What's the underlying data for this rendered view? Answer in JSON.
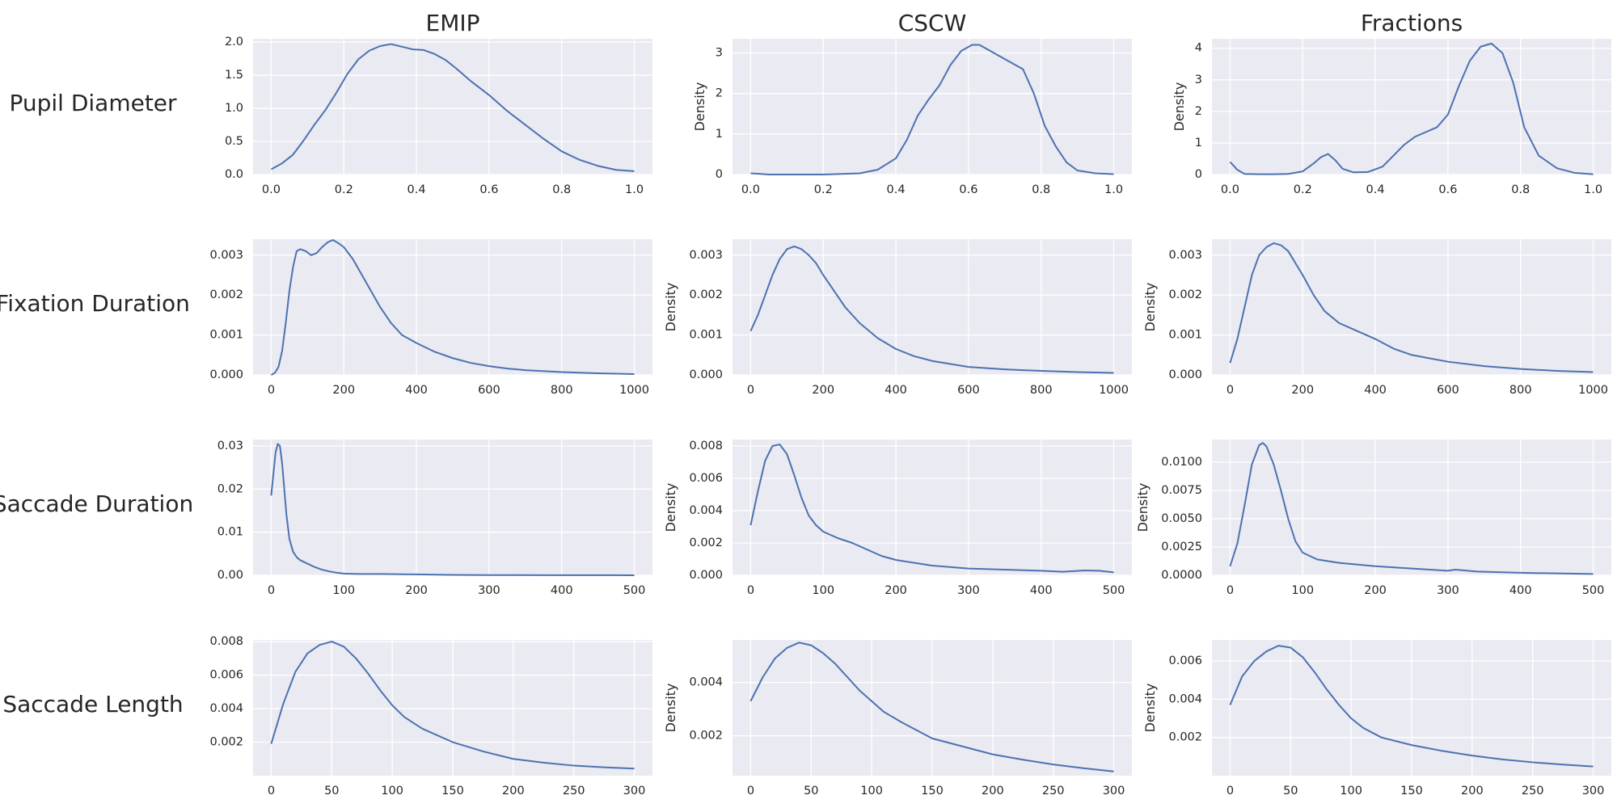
{
  "chart_data": {
    "type": "line",
    "subtype": "kde-density-grid",
    "columns": [
      "EMIP",
      "CSCW",
      "Fractions"
    ],
    "rows": [
      "Pupil Diameter",
      "Fixation Duration",
      "Saccade Duration",
      "Saccade Length"
    ],
    "colors": {
      "line": "#4c72b0",
      "background": "#eaeaf2",
      "grid": "#ffffff"
    },
    "panels": [
      {
        "id": "pupil-diameter-emip",
        "row": "Pupil Diameter",
        "column": "EMIP",
        "ylabel": "",
        "xlim": [
          -0.05,
          1.05
        ],
        "ylim": [
          0,
          2.05
        ],
        "xticks": [
          0,
          0.2,
          0.4,
          0.6,
          0.8,
          1
        ],
        "xtick_labels": [
          "0.0",
          "0.2",
          "0.4",
          "0.6",
          "0.8",
          "1.0"
        ],
        "yticks": [
          0,
          0.5,
          1,
          1.5,
          2
        ],
        "ytick_labels": [
          "0.0",
          "0.5",
          "1.0",
          "1.5",
          "2.0"
        ],
        "x": [
          0,
          0.03,
          0.06,
          0.09,
          0.12,
          0.15,
          0.18,
          0.21,
          0.24,
          0.27,
          0.3,
          0.33,
          0.36,
          0.39,
          0.42,
          0.45,
          0.48,
          0.51,
          0.55,
          0.6,
          0.65,
          0.7,
          0.75,
          0.8,
          0.85,
          0.9,
          0.95,
          1
        ],
        "y": [
          0.08,
          0.17,
          0.3,
          0.52,
          0.76,
          0.98,
          1.24,
          1.52,
          1.74,
          1.87,
          1.94,
          1.97,
          1.93,
          1.89,
          1.88,
          1.82,
          1.73,
          1.6,
          1.41,
          1.2,
          0.96,
          0.75,
          0.54,
          0.35,
          0.22,
          0.13,
          0.07,
          0.05
        ]
      },
      {
        "id": "pupil-diameter-cscw",
        "row": "Pupil Diameter",
        "column": "CSCW",
        "ylabel": "Density",
        "xlim": [
          -0.05,
          1.05
        ],
        "ylim": [
          0,
          3.35
        ],
        "xticks": [
          0,
          0.2,
          0.4,
          0.6,
          0.8,
          1
        ],
        "xtick_labels": [
          "0.0",
          "0.2",
          "0.4",
          "0.6",
          "0.8",
          "1.0"
        ],
        "yticks": [
          0,
          1,
          2,
          3
        ],
        "ytick_labels": [
          "0",
          "1",
          "2",
          "3"
        ],
        "x": [
          0,
          0.02,
          0.05,
          0.1,
          0.2,
          0.3,
          0.35,
          0.4,
          0.43,
          0.46,
          0.49,
          0.52,
          0.55,
          0.58,
          0.61,
          0.63,
          0.66,
          0.69,
          0.72,
          0.75,
          0.78,
          0.81,
          0.84,
          0.87,
          0.9,
          0.95,
          1
        ],
        "y": [
          0.03,
          0.02,
          0.0,
          0.0,
          0.0,
          0.03,
          0.12,
          0.4,
          0.85,
          1.45,
          1.85,
          2.2,
          2.7,
          3.05,
          3.2,
          3.2,
          3.05,
          2.9,
          2.75,
          2.6,
          2.0,
          1.2,
          0.7,
          0.3,
          0.1,
          0.03,
          0.01
        ]
      },
      {
        "id": "pupil-diameter-fractions",
        "row": "Pupil Diameter",
        "column": "Fractions",
        "ylabel": "Density",
        "xlim": [
          -0.05,
          1.05
        ],
        "ylim": [
          0,
          4.3
        ],
        "xticks": [
          0,
          0.2,
          0.4,
          0.6,
          0.8,
          1
        ],
        "xtick_labels": [
          "0.0",
          "0.2",
          "0.4",
          "0.6",
          "0.8",
          "1.0"
        ],
        "yticks": [
          0,
          1,
          2,
          3,
          4
        ],
        "ytick_labels": [
          "0",
          "1",
          "2",
          "3",
          "4"
        ],
        "x": [
          0,
          0.02,
          0.04,
          0.08,
          0.12,
          0.16,
          0.2,
          0.23,
          0.25,
          0.27,
          0.29,
          0.31,
          0.34,
          0.38,
          0.42,
          0.45,
          0.48,
          0.51,
          0.54,
          0.57,
          0.6,
          0.63,
          0.66,
          0.69,
          0.72,
          0.75,
          0.78,
          0.81,
          0.85,
          0.9,
          0.95,
          1
        ],
        "y": [
          0.4,
          0.15,
          0.02,
          0.01,
          0.01,
          0.02,
          0.1,
          0.35,
          0.55,
          0.65,
          0.45,
          0.18,
          0.07,
          0.08,
          0.25,
          0.6,
          0.95,
          1.2,
          1.35,
          1.5,
          1.9,
          2.8,
          3.6,
          4.05,
          4.15,
          3.85,
          2.9,
          1.5,
          0.6,
          0.2,
          0.05,
          0.01
        ]
      },
      {
        "id": "fixation-duration-emip",
        "row": "Fixation Duration",
        "column": "EMIP",
        "ylabel": "",
        "xlim": [
          -50,
          1050
        ],
        "ylim": [
          0,
          0.0034
        ],
        "xticks": [
          0,
          200,
          400,
          600,
          800,
          1000
        ],
        "xtick_labels": [
          "0",
          "200",
          "400",
          "600",
          "800",
          "1000"
        ],
        "yticks": [
          0,
          0.001,
          0.002,
          0.003
        ],
        "ytick_labels": [
          "0.000",
          "0.001",
          "0.002",
          "0.003"
        ],
        "x": [
          0,
          10,
          20,
          30,
          40,
          50,
          60,
          70,
          80,
          95,
          110,
          125,
          140,
          155,
          170,
          185,
          200,
          225,
          250,
          275,
          300,
          330,
          360,
          400,
          450,
          500,
          550,
          600,
          650,
          700,
          800,
          900,
          1000
        ],
        "y": [
          0.0,
          5e-05,
          0.0002,
          0.0006,
          0.0013,
          0.0021,
          0.0027,
          0.0031,
          0.00315,
          0.0031,
          0.003,
          0.00305,
          0.0032,
          0.00332,
          0.00338,
          0.0033,
          0.0032,
          0.0029,
          0.0025,
          0.0021,
          0.0017,
          0.0013,
          0.001,
          0.0008,
          0.00058,
          0.00042,
          0.0003,
          0.00022,
          0.00016,
          0.00012,
          7e-05,
          4e-05,
          2e-05
        ]
      },
      {
        "id": "fixation-duration-cscw",
        "row": "Fixation Duration",
        "column": "CSCW",
        "ylabel": "Density",
        "xlim": [
          -50,
          1050
        ],
        "ylim": [
          0,
          0.0034
        ],
        "xticks": [
          0,
          200,
          400,
          600,
          800,
          1000
        ],
        "xtick_labels": [
          "0",
          "200",
          "400",
          "600",
          "800",
          "1000"
        ],
        "yticks": [
          0,
          0.001,
          0.002,
          0.003
        ],
        "ytick_labels": [
          "0.000",
          "0.001",
          "0.002",
          "0.003"
        ],
        "x": [
          0,
          20,
          40,
          60,
          80,
          100,
          120,
          140,
          160,
          180,
          200,
          230,
          260,
          300,
          350,
          400,
          450,
          500,
          600,
          700,
          800,
          900,
          1000
        ],
        "y": [
          0.0011,
          0.0015,
          0.002,
          0.0025,
          0.0029,
          0.00315,
          0.00322,
          0.00315,
          0.003,
          0.0028,
          0.0025,
          0.0021,
          0.0017,
          0.0013,
          0.00092,
          0.00065,
          0.00047,
          0.00035,
          0.0002,
          0.00014,
          0.0001,
          7e-05,
          5e-05
        ]
      },
      {
        "id": "fixation-duration-fractions",
        "row": "Fixation Duration",
        "column": "Fractions",
        "ylabel": "Density",
        "xlim": [
          -50,
          1050
        ],
        "ylim": [
          0,
          0.0034
        ],
        "xticks": [
          0,
          200,
          400,
          600,
          800,
          1000
        ],
        "xtick_labels": [
          "0",
          "200",
          "400",
          "600",
          "800",
          "1000"
        ],
        "yticks": [
          0,
          0.001,
          0.002,
          0.003
        ],
        "ytick_labels": [
          "0.000",
          "0.001",
          "0.002",
          "0.003"
        ],
        "x": [
          0,
          20,
          40,
          60,
          80,
          100,
          120,
          140,
          160,
          180,
          200,
          230,
          260,
          300,
          350,
          400,
          450,
          500,
          600,
          700,
          800,
          900,
          1000
        ],
        "y": [
          0.0003,
          0.0009,
          0.0017,
          0.0025,
          0.003,
          0.0032,
          0.0033,
          0.00325,
          0.0031,
          0.0028,
          0.0025,
          0.002,
          0.0016,
          0.0013,
          0.0011,
          0.0009,
          0.00066,
          0.0005,
          0.00033,
          0.00022,
          0.00015,
          0.0001,
          7e-05
        ]
      },
      {
        "id": "saccade-duration-emip",
        "row": "Saccade Duration",
        "column": "EMIP",
        "ylabel": "",
        "xlim": [
          -25,
          525
        ],
        "ylim": [
          0,
          0.0315
        ],
        "xticks": [
          0,
          100,
          200,
          300,
          400,
          500
        ],
        "xtick_labels": [
          "0",
          "100",
          "200",
          "300",
          "400",
          "500"
        ],
        "yticks": [
          0,
          0.01,
          0.02,
          0.03
        ],
        "ytick_labels": [
          "0.00",
          "0.01",
          "0.02",
          "0.03"
        ],
        "x": [
          0,
          3,
          6,
          9,
          12,
          15,
          18,
          21,
          25,
          30,
          35,
          40,
          50,
          60,
          70,
          80,
          90,
          100,
          120,
          150,
          200,
          250,
          300,
          400,
          500
        ],
        "y": [
          0.0185,
          0.0235,
          0.0285,
          0.0305,
          0.03,
          0.026,
          0.02,
          0.014,
          0.0085,
          0.0055,
          0.0042,
          0.0035,
          0.0027,
          0.0019,
          0.0013,
          0.0009,
          0.0006,
          0.0004,
          0.0003,
          0.0003,
          0.0002,
          0.0001,
          5e-05,
          2e-05,
          1e-05
        ]
      },
      {
        "id": "saccade-duration-cscw",
        "row": "Saccade Duration",
        "column": "CSCW",
        "ylabel": "Density",
        "xlim": [
          -25,
          525
        ],
        "ylim": [
          0,
          0.0084
        ],
        "xticks": [
          0,
          100,
          200,
          300,
          400,
          500
        ],
        "xtick_labels": [
          "0",
          "100",
          "200",
          "300",
          "400",
          "500"
        ],
        "yticks": [
          0,
          0.002,
          0.004,
          0.006,
          0.008
        ],
        "ytick_labels": [
          "0.000",
          "0.002",
          "0.004",
          "0.006",
          "0.008"
        ],
        "x": [
          0,
          10,
          20,
          30,
          40,
          50,
          60,
          70,
          80,
          90,
          100,
          120,
          140,
          160,
          180,
          200,
          250,
          300,
          350,
          400,
          430,
          460,
          480,
          500
        ],
        "y": [
          0.0031,
          0.0052,
          0.0071,
          0.008,
          0.0081,
          0.0075,
          0.0062,
          0.0048,
          0.0037,
          0.0031,
          0.0027,
          0.0023,
          0.002,
          0.0016,
          0.0012,
          0.00095,
          0.0006,
          0.00042,
          0.00035,
          0.00028,
          0.00022,
          0.0003,
          0.00028,
          0.00018
        ]
      },
      {
        "id": "saccade-duration-fractions",
        "row": "Saccade Duration",
        "column": "Fractions",
        "ylabel": "Density",
        "xlim": [
          -25,
          525
        ],
        "ylim": [
          0,
          0.012
        ],
        "xticks": [
          0,
          100,
          200,
          300,
          400,
          500
        ],
        "xtick_labels": [
          "0",
          "100",
          "200",
          "300",
          "400",
          "500"
        ],
        "yticks": [
          0,
          0.0025,
          0.005,
          0.0075,
          0.01
        ],
        "ytick_labels": [
          "0.0000",
          "0.0025",
          "0.0050",
          "0.0075",
          "0.0100"
        ],
        "x": [
          0,
          10,
          20,
          30,
          40,
          45,
          50,
          60,
          70,
          80,
          90,
          100,
          120,
          150,
          200,
          250,
          300,
          310,
          320,
          340,
          400,
          500
        ],
        "y": [
          0.0008,
          0.0028,
          0.0062,
          0.0098,
          0.0115,
          0.0117,
          0.0114,
          0.0098,
          0.0075,
          0.005,
          0.003,
          0.002,
          0.0014,
          0.0011,
          0.0008,
          0.0006,
          0.0004,
          0.0005,
          0.00045,
          0.00033,
          0.00022,
          0.00012
        ]
      },
      {
        "id": "saccade-length-emip",
        "row": "Saccade Length",
        "column": "EMIP",
        "ylabel": "",
        "xlim": [
          -15,
          315
        ],
        "ylim": [
          0,
          0.0081
        ],
        "xticks": [
          0,
          50,
          100,
          150,
          200,
          250,
          300
        ],
        "xtick_labels": [
          "0",
          "50",
          "100",
          "150",
          "200",
          "250",
          "300"
        ],
        "yticks": [
          0.002,
          0.004,
          0.006,
          0.008
        ],
        "ytick_labels": [
          "0.002",
          "0.004",
          "0.006",
          "0.008"
        ],
        "x": [
          0,
          10,
          20,
          30,
          40,
          50,
          60,
          70,
          80,
          90,
          100,
          110,
          125,
          150,
          175,
          200,
          225,
          250,
          275,
          300
        ],
        "y": [
          0.0019,
          0.0043,
          0.0062,
          0.0073,
          0.0078,
          0.008,
          0.0077,
          0.007,
          0.0061,
          0.0051,
          0.0042,
          0.0035,
          0.0028,
          0.002,
          0.00145,
          0.001,
          0.00078,
          0.0006,
          0.0005,
          0.00042
        ]
      },
      {
        "id": "saccade-length-cscw",
        "row": "Saccade Length",
        "column": "CSCW",
        "ylabel": "Density",
        "xlim": [
          -15,
          315
        ],
        "ylim": [
          0.0005,
          0.0056
        ],
        "xticks": [
          0,
          50,
          100,
          150,
          200,
          250,
          300
        ],
        "xtick_labels": [
          "0",
          "50",
          "100",
          "150",
          "200",
          "250",
          "300"
        ],
        "yticks": [
          0.002,
          0.004
        ],
        "ytick_labels": [
          "0.002",
          "0.004"
        ],
        "x": [
          0,
          10,
          20,
          30,
          40,
          50,
          60,
          70,
          80,
          90,
          100,
          110,
          125,
          150,
          175,
          200,
          225,
          250,
          275,
          300
        ],
        "y": [
          0.0033,
          0.0042,
          0.0049,
          0.0053,
          0.0055,
          0.0054,
          0.0051,
          0.0047,
          0.0042,
          0.0037,
          0.0033,
          0.0029,
          0.0025,
          0.0019,
          0.0016,
          0.0013,
          0.0011,
          0.00092,
          0.00078,
          0.00066
        ]
      },
      {
        "id": "saccade-length-fractions",
        "row": "Saccade Length",
        "column": "Fractions",
        "ylabel": "Density",
        "xlim": [
          -15,
          315
        ],
        "ylim": [
          0,
          0.0071
        ],
        "xticks": [
          0,
          50,
          100,
          150,
          200,
          250,
          300
        ],
        "xtick_labels": [
          "0",
          "50",
          "100",
          "150",
          "200",
          "250",
          "300"
        ],
        "yticks": [
          0.002,
          0.004,
          0.006
        ],
        "ytick_labels": [
          "0.002",
          "0.004",
          "0.006"
        ],
        "x": [
          0,
          10,
          20,
          30,
          40,
          50,
          60,
          70,
          80,
          90,
          100,
          110,
          125,
          150,
          175,
          200,
          225,
          250,
          275,
          300
        ],
        "y": [
          0.0037,
          0.0052,
          0.006,
          0.0065,
          0.0068,
          0.0067,
          0.0062,
          0.0054,
          0.0045,
          0.0037,
          0.003,
          0.0025,
          0.002,
          0.0016,
          0.0013,
          0.00105,
          0.00085,
          0.0007,
          0.00058,
          0.00048
        ]
      }
    ]
  }
}
